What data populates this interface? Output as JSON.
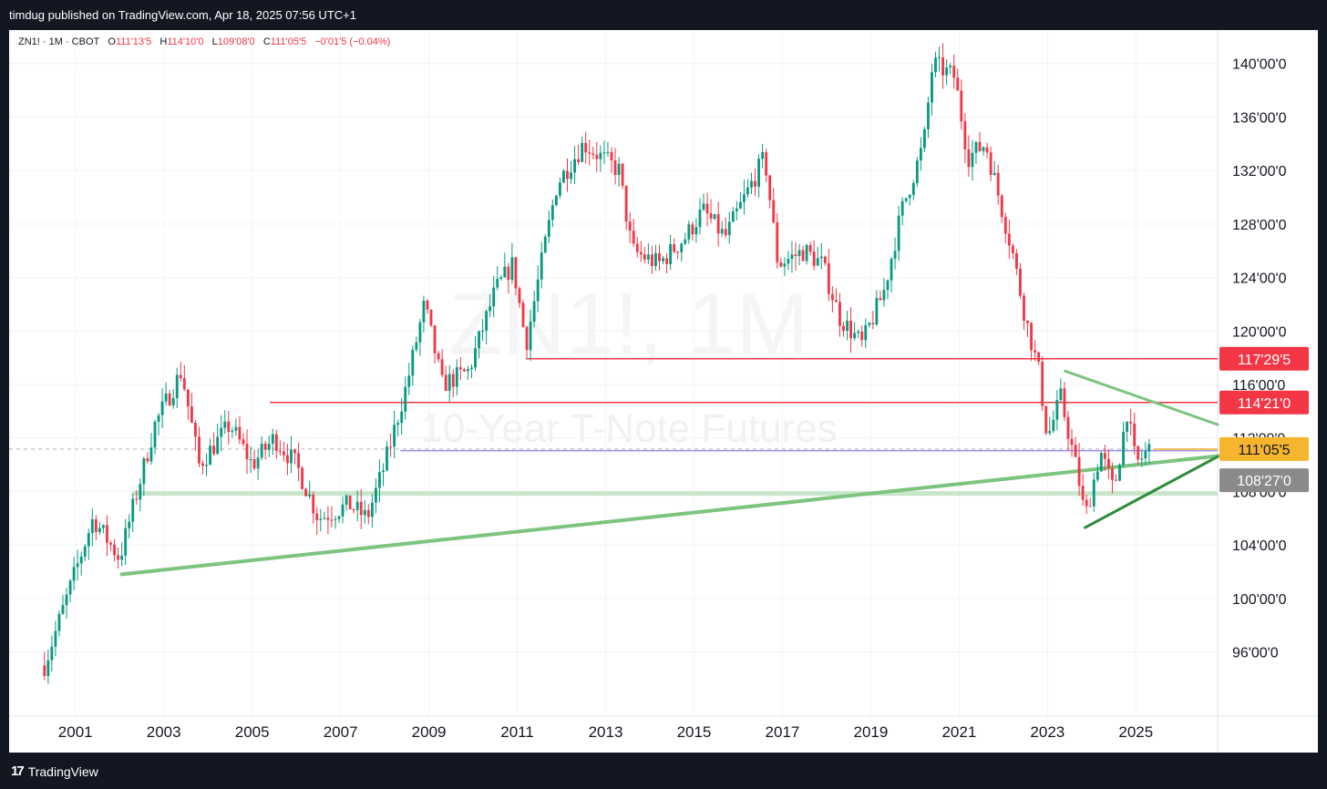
{
  "header": {
    "published": "timdug published on TradingView.com, Apr 18, 2025 07:56 UTC+1"
  },
  "footer": {
    "brand": "TradingView"
  },
  "legend": {
    "symbol": "ZN1! · 1M · CBOT",
    "o_label": "O",
    "o_value": "111'13'5",
    "h_label": "H",
    "h_value": "114'10'0",
    "l_label": "L",
    "l_value": "109'08'0",
    "c_label": "C",
    "c_value": "111'05'5",
    "change": "−0'01'5 (−0.04%)"
  },
  "watermark": {
    "symbol": "ZN1!, 1M",
    "name": "10-Year T-Note Futures"
  },
  "colors": {
    "up": "#089981",
    "down": "#f23645",
    "trend": "#7cc47f",
    "trend_dark": "#2e8b3a",
    "level_red": "#f23645",
    "level_purple": "#9c8fe8",
    "grid": "#f0f3fa"
  },
  "chart_data": {
    "type": "candlestick",
    "x_ticks": [
      "2001",
      "2003",
      "2005",
      "2007",
      "2009",
      "2011",
      "2013",
      "2015",
      "2017",
      "2019",
      "2021",
      "2023",
      "2025"
    ],
    "y_ticks": [
      "96'00'0",
      "100'00'0",
      "104'00'0",
      "108'00'0",
      "112'00'0",
      "116'00'0",
      "120'00'0",
      "124'00'0",
      "128'00'0",
      "132'00'0",
      "136'00'0",
      "140'00'0"
    ],
    "y_tick_values": [
      96,
      100,
      104,
      108,
      112,
      116,
      120,
      124,
      128,
      132,
      136,
      140
    ],
    "ylim": [
      91.2,
      142.5
    ],
    "xlim": [
      1999.5,
      2026.85
    ],
    "anchors": [
      [
        2000.3,
        95
      ],
      [
        2000.9,
        101
      ],
      [
        2001.4,
        106
      ],
      [
        2002.0,
        103
      ],
      [
        2002.4,
        108
      ],
      [
        2002.8,
        113
      ],
      [
        2003.4,
        117
      ],
      [
        2003.8,
        110
      ],
      [
        2004.5,
        113
      ],
      [
        2005.0,
        110
      ],
      [
        2005.5,
        112
      ],
      [
        2006.0,
        110
      ],
      [
        2006.5,
        106
      ],
      [
        2007.2,
        107
      ],
      [
        2007.6,
        106
      ],
      [
        2008.0,
        110
      ],
      [
        2008.5,
        116
      ],
      [
        2008.9,
        122
      ],
      [
        2009.3,
        116
      ],
      [
        2009.9,
        117
      ],
      [
        2010.5,
        123
      ],
      [
        2010.9,
        125
      ],
      [
        2011.2,
        119
      ],
      [
        2011.6,
        126
      ],
      [
        2011.9,
        131
      ],
      [
        2012.5,
        134
      ],
      [
        2012.9,
        133
      ],
      [
        2013.3,
        132
      ],
      [
        2013.6,
        126
      ],
      [
        2014.2,
        125
      ],
      [
        2014.8,
        127
      ],
      [
        2015.2,
        129
      ],
      [
        2015.7,
        127
      ],
      [
        2016.3,
        131
      ],
      [
        2016.6,
        133
      ],
      [
        2016.9,
        125
      ],
      [
        2017.5,
        126
      ],
      [
        2017.9,
        125
      ],
      [
        2018.3,
        121
      ],
      [
        2018.8,
        119
      ],
      [
        2019.3,
        123
      ],
      [
        2019.7,
        129
      ],
      [
        2020.2,
        134
      ],
      [
        2020.4,
        140
      ],
      [
        2020.9,
        139
      ],
      [
        2021.2,
        133
      ],
      [
        2021.6,
        134
      ],
      [
        2021.9,
        130
      ],
      [
        2022.2,
        126
      ],
      [
        2022.5,
        121
      ],
      [
        2022.8,
        117
      ],
      [
        2023.0,
        112
      ],
      [
        2023.3,
        115
      ],
      [
        2023.7,
        109
      ],
      [
        2023.85,
        106
      ],
      [
        2024.2,
        111
      ],
      [
        2024.5,
        108
      ],
      [
        2024.8,
        114
      ],
      [
        2025.0,
        110
      ],
      [
        2025.3,
        111.17
      ]
    ],
    "price_labels": [
      {
        "text": "117'29'5",
        "value": 117.92,
        "color": "#f23645",
        "text_color": "#ffffff"
      },
      {
        "text": "114'21'0",
        "value": 114.65,
        "color": "#f23645",
        "text_color": "#ffffff"
      },
      {
        "text": "111'05'5",
        "value": 111.17,
        "color": "#f5b52e",
        "text_color": "#131722"
      },
      {
        "text": "108'27'0",
        "value": 108.84,
        "color": "#8a8a8a",
        "text_color": "#ffffff"
      }
    ],
    "levels": [
      {
        "from": 2011.2,
        "value": 117.92,
        "color": "#f23645",
        "width": 1.5
      },
      {
        "from": 2005.4,
        "value": 114.65,
        "color": "#f23645",
        "width": 1.5
      },
      {
        "from": 2008.35,
        "value": 111.05,
        "color": "#9c8fe8",
        "width": 1.5
      },
      {
        "from": 2002.3,
        "value": 107.85,
        "color": "#c8e6c9",
        "width": 5
      }
    ],
    "trendlines": [
      {
        "x1": 2002.05,
        "y1": 101.8,
        "x2": 2026.85,
        "y2": 110.65,
        "color": "#7cc47f",
        "width": 4
      },
      {
        "x1": 2023.85,
        "y1": 105.3,
        "x2": 2026.85,
        "y2": 110.6,
        "color": "#2e8b3a",
        "width": 3
      },
      {
        "x1": 2023.4,
        "y1": 117.0,
        "x2": 2026.85,
        "y2": 113.0,
        "color": "#7cc47f",
        "width": 3
      }
    ],
    "last_price": 111.17
  }
}
